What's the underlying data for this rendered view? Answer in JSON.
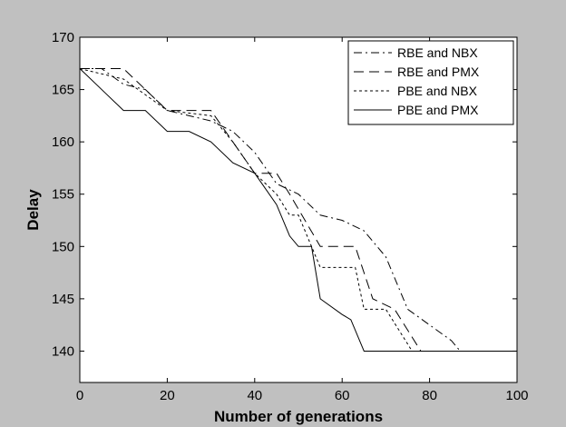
{
  "chart_data": {
    "type": "line",
    "title": "",
    "xlabel": "Number of generations",
    "ylabel": "Delay",
    "xlim": [
      0,
      100
    ],
    "ylim": [
      137,
      170
    ],
    "x_ticks": [
      0,
      20,
      40,
      60,
      80,
      100
    ],
    "y_ticks": [
      140,
      145,
      150,
      155,
      160,
      165,
      170
    ],
    "grid": false,
    "legend_position": "top-right",
    "series": [
      {
        "name": "RBE and NBX",
        "line_style": "dash-dot",
        "x": [
          0,
          5,
          10,
          15,
          20,
          25,
          30,
          35,
          40,
          45,
          50,
          55,
          60,
          65,
          70,
          75,
          80,
          85,
          87
        ],
        "y": [
          167,
          167,
          165.5,
          165,
          163,
          162.5,
          162,
          161,
          159,
          156,
          155,
          153,
          152.5,
          151.5,
          149,
          144,
          142.5,
          141,
          140
        ]
      },
      {
        "name": "RBE and PMX",
        "line_style": "dashed",
        "x": [
          0,
          10,
          20,
          30,
          40,
          45,
          48,
          55,
          63,
          67,
          72,
          78,
          80,
          100
        ],
        "y": [
          167,
          167,
          163,
          163,
          157,
          157,
          155,
          150,
          150,
          145,
          144,
          140,
          140,
          140
        ]
      },
      {
        "name": "PBE and NBX",
        "line_style": "dotted",
        "x": [
          0,
          10,
          20,
          30,
          35,
          40,
          45,
          48,
          50,
          53,
          55,
          63,
          65,
          70,
          76,
          100
        ],
        "y": [
          167,
          166,
          163,
          162.5,
          160,
          157,
          155,
          153,
          153,
          150,
          148,
          148,
          144,
          144,
          140,
          140
        ]
      },
      {
        "name": "PBE and PMX",
        "line_style": "solid",
        "x": [
          0,
          5,
          10,
          15,
          20,
          25,
          30,
          35,
          40,
          45,
          48,
          50,
          53,
          55,
          60,
          62,
          65,
          70,
          100
        ],
        "y": [
          167,
          165,
          163,
          163,
          161,
          161,
          160,
          158,
          157,
          154,
          151,
          150,
          150,
          145,
          143.5,
          143,
          140,
          140,
          140
        ]
      }
    ]
  },
  "legend": {
    "items": [
      "RBE and NBX",
      "RBE and PMX",
      "PBE and NBX",
      "PBE and PMX"
    ]
  }
}
